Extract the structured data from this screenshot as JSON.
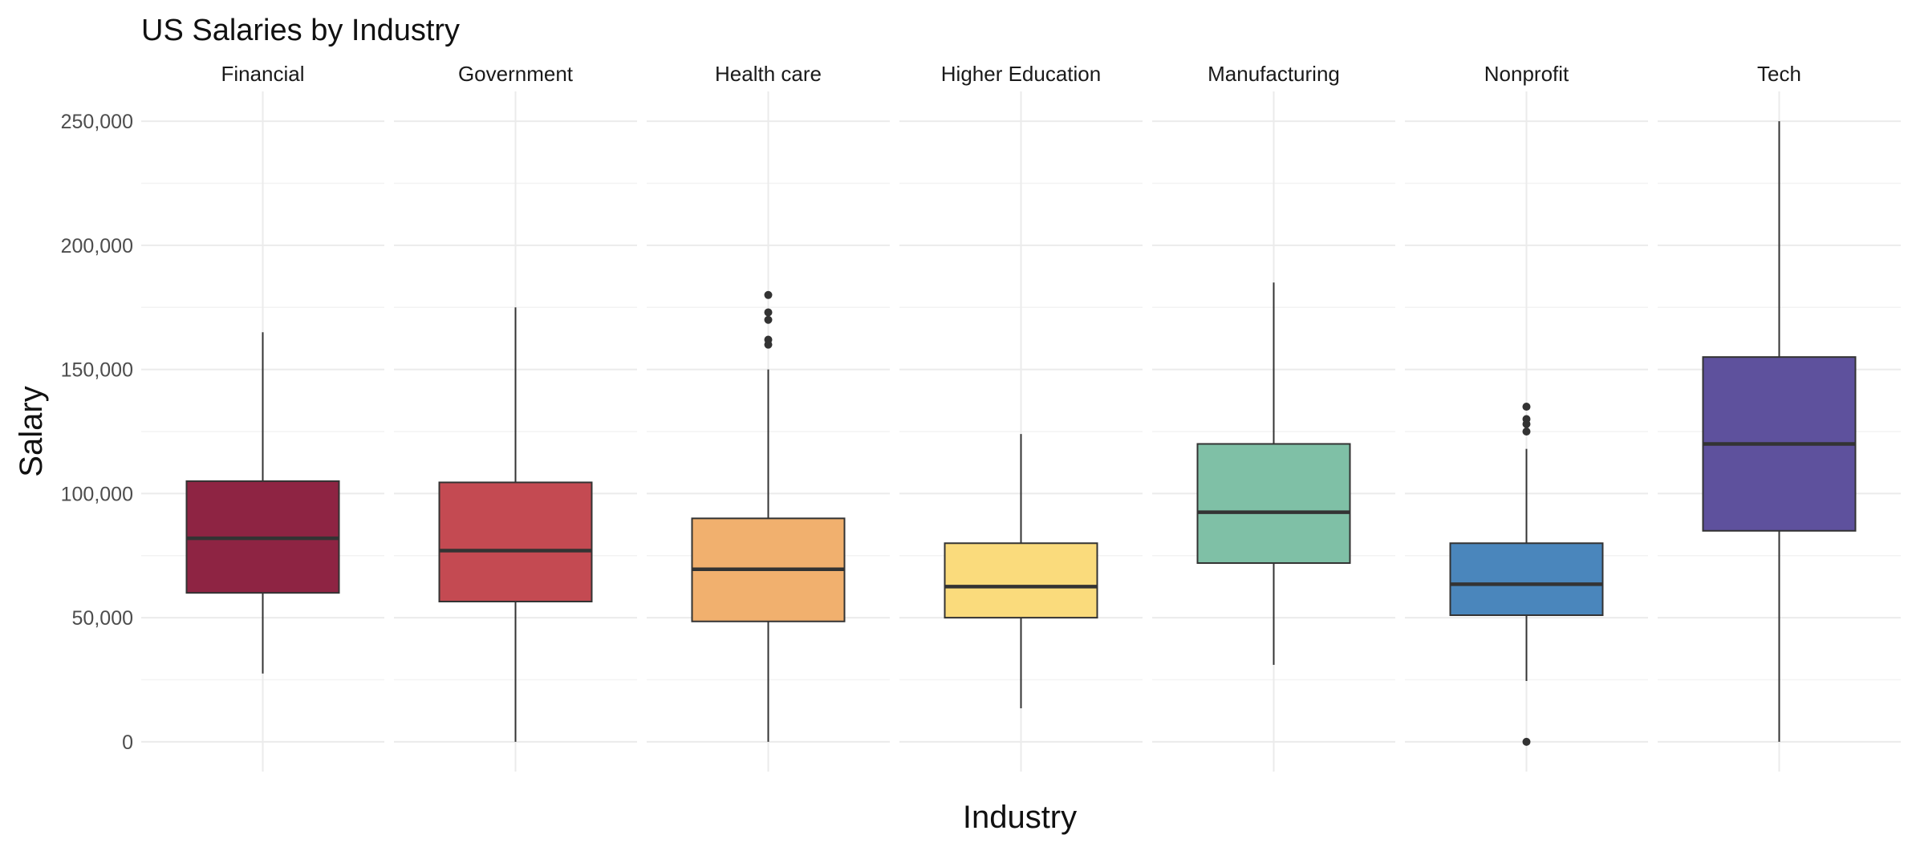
{
  "chart_data": {
    "type": "boxplot",
    "title": "US Salaries by Industry",
    "xlabel": "Industry",
    "ylabel": "Salary",
    "ylim": [
      -12000,
      262000
    ],
    "y_ticks": [
      0,
      50000,
      100000,
      150000,
      200000,
      250000
    ],
    "y_tick_labels": [
      "0",
      "50,000",
      "100,000",
      "150,000",
      "200,000",
      "250,000"
    ],
    "grid": true,
    "legend": "none",
    "facets": [
      {
        "name": "Financial",
        "color": "#8E2443",
        "whisker_low": 27500,
        "q1": 60000,
        "median": 82000,
        "q3": 105000,
        "whisker_high": 165000,
        "outliers": []
      },
      {
        "name": "Government",
        "color": "#C44A52",
        "whisker_low": 0,
        "q1": 56500,
        "median": 77000,
        "q3": 104500,
        "whisker_high": 175000,
        "outliers": []
      },
      {
        "name": "Health care",
        "color": "#F1B06E",
        "whisker_low": 0,
        "q1": 48500,
        "median": 69500,
        "q3": 90000,
        "whisker_high": 150000,
        "outliers": [
          160000,
          162000,
          170000,
          173000,
          180000
        ]
      },
      {
        "name": "Higher Education",
        "color": "#FADB7C",
        "whisker_low": 13500,
        "q1": 50000,
        "median": 62500,
        "q3": 80000,
        "whisker_high": 124000,
        "outliers": []
      },
      {
        "name": "Manufacturing",
        "color": "#7FC0A6",
        "whisker_low": 31000,
        "q1": 72000,
        "median": 92500,
        "q3": 120000,
        "whisker_high": 185000,
        "outliers": []
      },
      {
        "name": "Nonprofit",
        "color": "#4A86BC",
        "whisker_low": 24500,
        "q1": 51000,
        "median": 63500,
        "q3": 80000,
        "whisker_high": 118000,
        "outliers": [
          0,
          125000,
          128000,
          130000,
          135000
        ]
      },
      {
        "name": "Tech",
        "color": "#5E519D",
        "whisker_low": 0,
        "q1": 85000,
        "median": 120000,
        "q3": 155000,
        "whisker_high": 250000,
        "outliers": []
      }
    ]
  }
}
